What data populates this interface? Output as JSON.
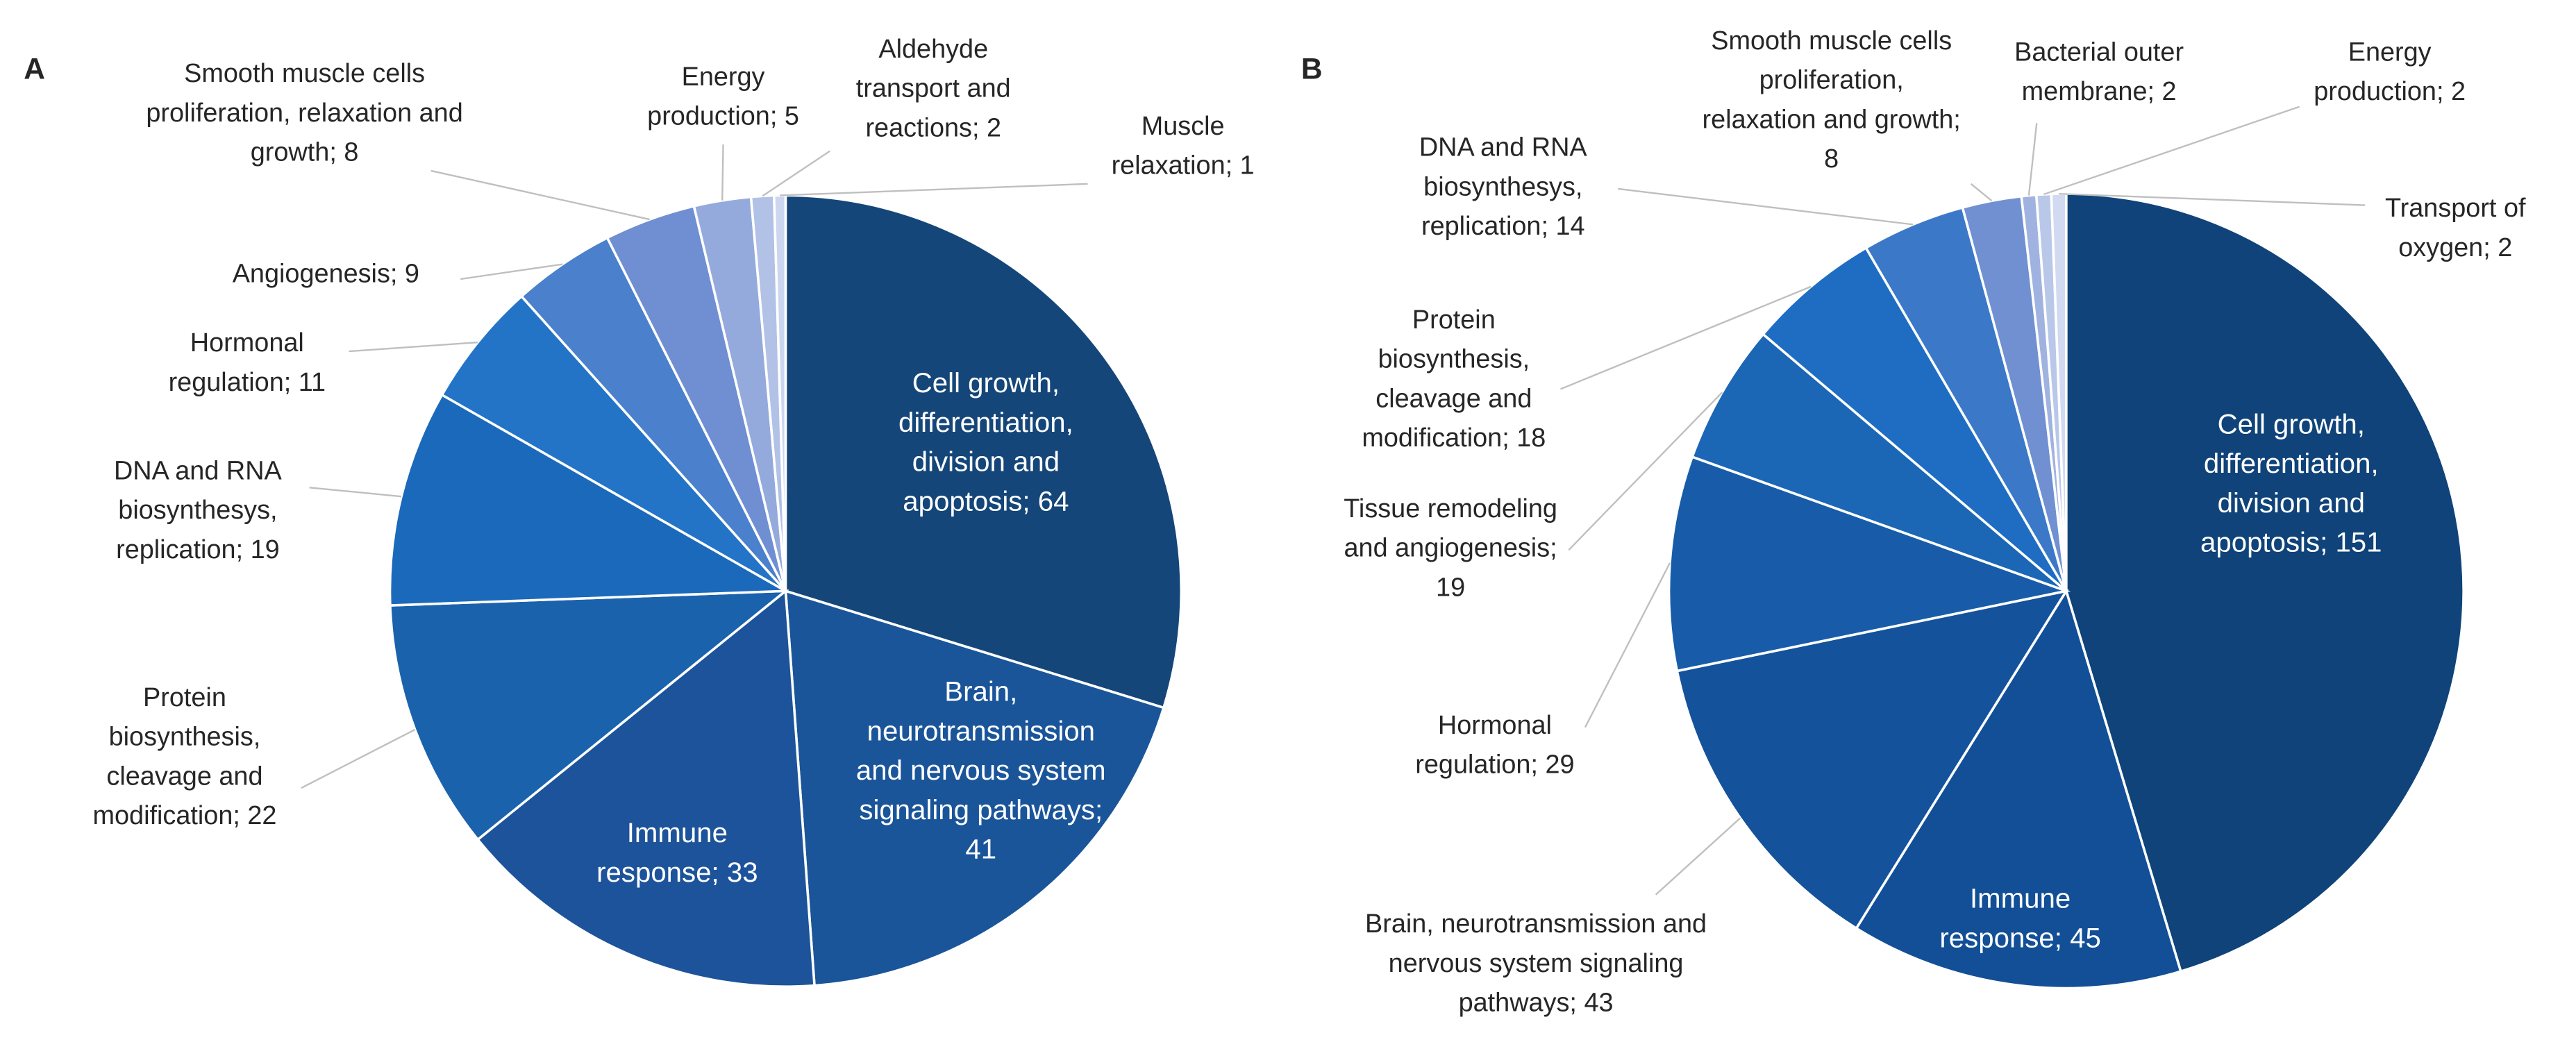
{
  "chart_data": [
    {
      "type": "pie",
      "title": "A",
      "label_separator": "; ",
      "categories": [
        "Cell growth, differentiation, division and apoptosis",
        "Brain, neurotransmission and nervous system signaling pathways",
        "Immune response",
        "Protein biosynthesis, cleavage and modification",
        "DNA and RNA biosynthesys, replication",
        "Hormonal regulation",
        "Angiogenesis",
        "Smooth muscle cells proliferation, relaxation and growth",
        "Energy production",
        "Aldehyde transport and reactions",
        "Muscle relaxation"
      ],
      "values": [
        64,
        41,
        33,
        22,
        19,
        11,
        9,
        8,
        5,
        2,
        1
      ],
      "colors": [
        "#154679",
        "#1a559a",
        "#1c539a",
        "#1b62ad",
        "#1b69ba",
        "#2374c6",
        "#4a80cc",
        "#6f8fd2",
        "#95aadc",
        "#b2c1e6",
        "#ccd6ef"
      ]
    },
    {
      "type": "pie",
      "title": "B",
      "label_separator": "; ",
      "categories": [
        "Cell growth, differentiation, division and apoptosis",
        "Immune response",
        "Brain, neurotransmission and nervous system signaling pathways",
        "Hormonal regulation",
        "Tissue remodeling and angiogenesis",
        "Protein biosynthesis, cleavage and modification",
        "DNA and RNA biosynthesys, replication",
        "Smooth muscle cells proliferation, relaxation and growth",
        "Bacterial outer membrane",
        "Energy production",
        "Transport of oxygen"
      ],
      "values": [
        151,
        45,
        43,
        29,
        19,
        18,
        14,
        8,
        2,
        2,
        2
      ],
      "colors": [
        "#0f4379",
        "#124f97",
        "#15529c",
        "#185ca9",
        "#1c66b6",
        "#1e6dc2",
        "#3b79c8",
        "#7090d2",
        "#a0b3e0",
        "#b9c7e9",
        "#d1daf1"
      ]
    }
  ]
}
